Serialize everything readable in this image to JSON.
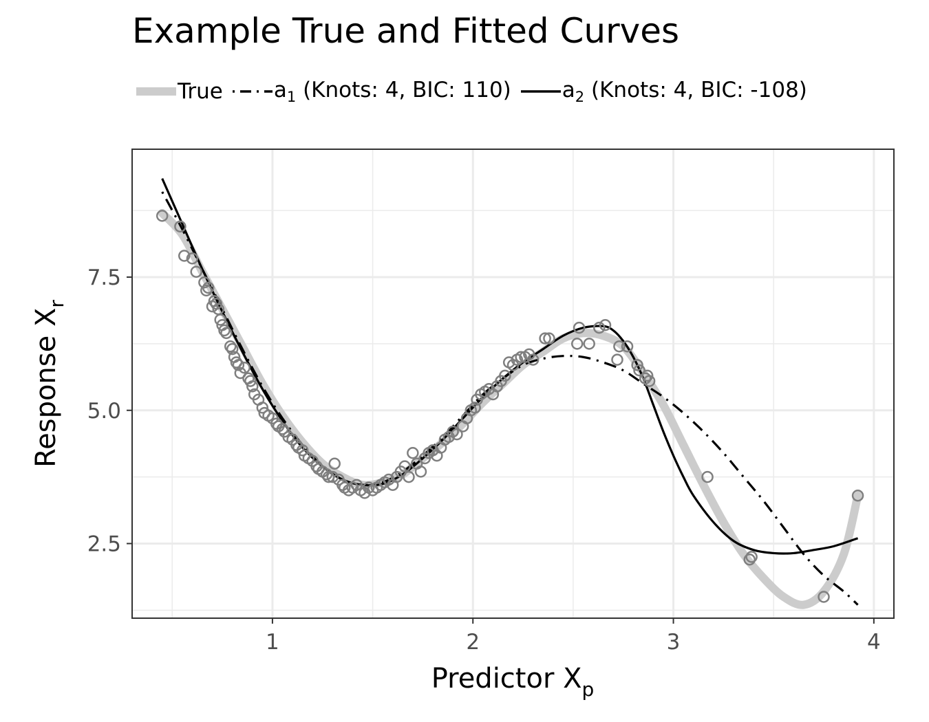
{
  "chart_data": {
    "type": "scatter",
    "title": "Example True and Fitted Curves",
    "xlabel": {
      "base": "Predictor X",
      "sub": "p"
    },
    "ylabel": {
      "base": "Response X",
      "sub": "r"
    },
    "xlim": [
      0.3,
      4.1
    ],
    "ylim": [
      1.1,
      9.9
    ],
    "x_ticks": [
      1,
      2,
      3,
      4
    ],
    "x_tick_labels": [
      "1",
      "2",
      "3",
      "4"
    ],
    "y_ticks": [
      2.5,
      5.0,
      7.5
    ],
    "y_tick_labels": [
      "2.5",
      "5.0",
      "7.5"
    ],
    "grid": true,
    "legend_position": "top",
    "legend": [
      {
        "key": "true",
        "label": "True",
        "color": "#cccccc",
        "style": "thick"
      },
      {
        "key": "a1",
        "label_base": "a",
        "label_sub": "1",
        "label_rest": " (Knots: 4, BIC: 110)",
        "color": "#000000",
        "style": "dotdash"
      },
      {
        "key": "a2",
        "label_base": "a",
        "label_sub": "2",
        "label_rest": " (Knots: 4, BIC: -108)",
        "color": "#000000",
        "style": "solid"
      }
    ],
    "series": [
      {
        "name": "True",
        "kind": "curve",
        "points": [
          [
            0.45,
            8.7
          ],
          [
            0.55,
            8.3
          ],
          [
            0.65,
            7.6
          ],
          [
            0.75,
            6.9
          ],
          [
            0.85,
            6.2
          ],
          [
            0.95,
            5.5
          ],
          [
            1.05,
            4.9
          ],
          [
            1.15,
            4.4
          ],
          [
            1.25,
            4.0
          ],
          [
            1.35,
            3.75
          ],
          [
            1.45,
            3.6
          ],
          [
            1.55,
            3.65
          ],
          [
            1.65,
            3.8
          ],
          [
            1.75,
            4.1
          ],
          [
            1.85,
            4.4
          ],
          [
            1.95,
            4.75
          ],
          [
            2.05,
            5.15
          ],
          [
            2.15,
            5.5
          ],
          [
            2.25,
            5.85
          ],
          [
            2.35,
            6.1
          ],
          [
            2.45,
            6.35
          ],
          [
            2.55,
            6.45
          ],
          [
            2.65,
            6.4
          ],
          [
            2.75,
            6.2
          ],
          [
            2.85,
            5.7
          ],
          [
            2.95,
            5.1
          ],
          [
            3.05,
            4.35
          ],
          [
            3.15,
            3.6
          ],
          [
            3.25,
            2.9
          ],
          [
            3.35,
            2.3
          ],
          [
            3.45,
            1.85
          ],
          [
            3.55,
            1.5
          ],
          [
            3.65,
            1.35
          ],
          [
            3.75,
            1.6
          ],
          [
            3.85,
            2.3
          ],
          [
            3.92,
            3.4
          ]
        ]
      },
      {
        "name": "a1",
        "kind": "curve",
        "points": [
          [
            0.45,
            9.1
          ],
          [
            0.55,
            8.4
          ],
          [
            0.65,
            7.65
          ],
          [
            0.75,
            6.9
          ],
          [
            0.85,
            6.15
          ],
          [
            0.95,
            5.45
          ],
          [
            1.05,
            4.85
          ],
          [
            1.15,
            4.35
          ],
          [
            1.25,
            3.95
          ],
          [
            1.35,
            3.7
          ],
          [
            1.45,
            3.6
          ],
          [
            1.55,
            3.65
          ],
          [
            1.65,
            3.85
          ],
          [
            1.75,
            4.15
          ],
          [
            1.85,
            4.5
          ],
          [
            1.95,
            4.9
          ],
          [
            2.05,
            5.3
          ],
          [
            2.15,
            5.6
          ],
          [
            2.25,
            5.85
          ],
          [
            2.35,
            5.97
          ],
          [
            2.45,
            6.02
          ],
          [
            2.55,
            6.0
          ],
          [
            2.65,
            5.9
          ],
          [
            2.75,
            5.75
          ],
          [
            2.85,
            5.5
          ],
          [
            2.95,
            5.25
          ],
          [
            3.05,
            4.95
          ],
          [
            3.15,
            4.6
          ],
          [
            3.25,
            4.2
          ],
          [
            3.35,
            3.75
          ],
          [
            3.45,
            3.3
          ],
          [
            3.55,
            2.8
          ],
          [
            3.65,
            2.3
          ],
          [
            3.75,
            1.9
          ],
          [
            3.85,
            1.6
          ],
          [
            3.92,
            1.35
          ]
        ]
      },
      {
        "name": "a2",
        "kind": "curve",
        "points": [
          [
            0.45,
            9.35
          ],
          [
            0.55,
            8.5
          ],
          [
            0.65,
            7.65
          ],
          [
            0.75,
            6.85
          ],
          [
            0.85,
            6.1
          ],
          [
            0.95,
            5.4
          ],
          [
            1.05,
            4.8
          ],
          [
            1.15,
            4.3
          ],
          [
            1.25,
            3.95
          ],
          [
            1.35,
            3.7
          ],
          [
            1.45,
            3.6
          ],
          [
            1.55,
            3.62
          ],
          [
            1.65,
            3.8
          ],
          [
            1.75,
            4.1
          ],
          [
            1.85,
            4.45
          ],
          [
            1.95,
            4.85
          ],
          [
            2.05,
            5.25
          ],
          [
            2.15,
            5.6
          ],
          [
            2.25,
            5.9
          ],
          [
            2.35,
            6.15
          ],
          [
            2.45,
            6.4
          ],
          [
            2.55,
            6.55
          ],
          [
            2.65,
            6.58
          ],
          [
            2.7,
            6.5
          ],
          [
            2.75,
            6.3
          ],
          [
            2.8,
            6.0
          ],
          [
            2.85,
            5.6
          ],
          [
            2.9,
            5.1
          ],
          [
            2.95,
            4.6
          ],
          [
            3.0,
            4.15
          ],
          [
            3.05,
            3.75
          ],
          [
            3.1,
            3.4
          ],
          [
            3.2,
            2.9
          ],
          [
            3.3,
            2.55
          ],
          [
            3.4,
            2.38
          ],
          [
            3.5,
            2.32
          ],
          [
            3.6,
            2.32
          ],
          [
            3.7,
            2.38
          ],
          [
            3.8,
            2.45
          ],
          [
            3.92,
            2.6
          ]
        ]
      },
      {
        "name": "observed",
        "kind": "points",
        "points": [
          [
            0.45,
            8.65
          ],
          [
            0.54,
            8.45
          ],
          [
            0.56,
            7.9
          ],
          [
            0.6,
            7.85
          ],
          [
            0.62,
            7.6
          ],
          [
            0.66,
            7.4
          ],
          [
            0.67,
            7.25
          ],
          [
            0.68,
            7.3
          ],
          [
            0.7,
            6.95
          ],
          [
            0.71,
            7.05
          ],
          [
            0.72,
            7.0
          ],
          [
            0.73,
            6.9
          ],
          [
            0.74,
            6.7
          ],
          [
            0.75,
            6.6
          ],
          [
            0.76,
            6.5
          ],
          [
            0.77,
            6.45
          ],
          [
            0.79,
            6.2
          ],
          [
            0.8,
            6.15
          ],
          [
            0.81,
            6.0
          ],
          [
            0.82,
            5.9
          ],
          [
            0.83,
            5.85
          ],
          [
            0.84,
            5.7
          ],
          [
            0.86,
            5.8
          ],
          [
            0.88,
            5.6
          ],
          [
            0.89,
            5.55
          ],
          [
            0.9,
            5.45
          ],
          [
            0.91,
            5.3
          ],
          [
            0.93,
            5.2
          ],
          [
            0.95,
            5.05
          ],
          [
            0.96,
            4.95
          ],
          [
            0.98,
            4.9
          ],
          [
            1.0,
            4.85
          ],
          [
            1.02,
            4.75
          ],
          [
            1.03,
            4.7
          ],
          [
            1.05,
            4.65
          ],
          [
            1.06,
            4.6
          ],
          [
            1.08,
            4.5
          ],
          [
            1.1,
            4.45
          ],
          [
            1.12,
            4.35
          ],
          [
            1.13,
            4.3
          ],
          [
            1.15,
            4.25
          ],
          [
            1.16,
            4.15
          ],
          [
            1.18,
            4.1
          ],
          [
            1.2,
            4.05
          ],
          [
            1.22,
            3.95
          ],
          [
            1.23,
            3.9
          ],
          [
            1.25,
            3.85
          ],
          [
            1.27,
            3.8
          ],
          [
            1.28,
            3.75
          ],
          [
            1.3,
            3.75
          ],
          [
            1.31,
            4.0
          ],
          [
            1.33,
            3.7
          ],
          [
            1.35,
            3.6
          ],
          [
            1.36,
            3.55
          ],
          [
            1.38,
            3.5
          ],
          [
            1.4,
            3.55
          ],
          [
            1.42,
            3.6
          ],
          [
            1.44,
            3.5
          ],
          [
            1.46,
            3.45
          ],
          [
            1.48,
            3.55
          ],
          [
            1.5,
            3.5
          ],
          [
            1.52,
            3.55
          ],
          [
            1.54,
            3.6
          ],
          [
            1.56,
            3.65
          ],
          [
            1.58,
            3.7
          ],
          [
            1.6,
            3.6
          ],
          [
            1.62,
            3.75
          ],
          [
            1.64,
            3.85
          ],
          [
            1.66,
            3.95
          ],
          [
            1.68,
            3.75
          ],
          [
            1.7,
            4.2
          ],
          [
            1.72,
            4.0
          ],
          [
            1.74,
            3.85
          ],
          [
            1.76,
            4.1
          ],
          [
            1.78,
            4.2
          ],
          [
            1.8,
            4.25
          ],
          [
            1.82,
            4.15
          ],
          [
            1.84,
            4.3
          ],
          [
            1.86,
            4.45
          ],
          [
            1.88,
            4.5
          ],
          [
            1.9,
            4.6
          ],
          [
            1.92,
            4.55
          ],
          [
            1.95,
            4.7
          ],
          [
            1.97,
            4.85
          ],
          [
            1.99,
            5.0
          ],
          [
            2.01,
            5.05
          ],
          [
            2.02,
            5.2
          ],
          [
            2.04,
            5.3
          ],
          [
            2.06,
            5.35
          ],
          [
            2.08,
            5.4
          ],
          [
            2.1,
            5.3
          ],
          [
            2.12,
            5.45
          ],
          [
            2.14,
            5.55
          ],
          [
            2.16,
            5.65
          ],
          [
            2.18,
            5.9
          ],
          [
            2.2,
            5.85
          ],
          [
            2.22,
            5.95
          ],
          [
            2.24,
            6.0
          ],
          [
            2.26,
            6.0
          ],
          [
            2.28,
            6.05
          ],
          [
            2.3,
            5.95
          ],
          [
            2.36,
            6.35
          ],
          [
            2.38,
            6.35
          ],
          [
            2.52,
            6.25
          ],
          [
            2.53,
            6.55
          ],
          [
            2.58,
            6.25
          ],
          [
            2.63,
            6.55
          ],
          [
            2.66,
            6.6
          ],
          [
            2.72,
            5.95
          ],
          [
            2.73,
            6.2
          ],
          [
            2.77,
            6.2
          ],
          [
            2.82,
            5.85
          ],
          [
            2.83,
            5.75
          ],
          [
            2.86,
            5.6
          ],
          [
            2.87,
            5.65
          ],
          [
            2.88,
            5.55
          ],
          [
            3.17,
            3.75
          ],
          [
            3.38,
            2.2
          ],
          [
            3.39,
            2.25
          ],
          [
            3.75,
            1.5
          ],
          [
            3.92,
            3.4
          ]
        ]
      }
    ]
  }
}
